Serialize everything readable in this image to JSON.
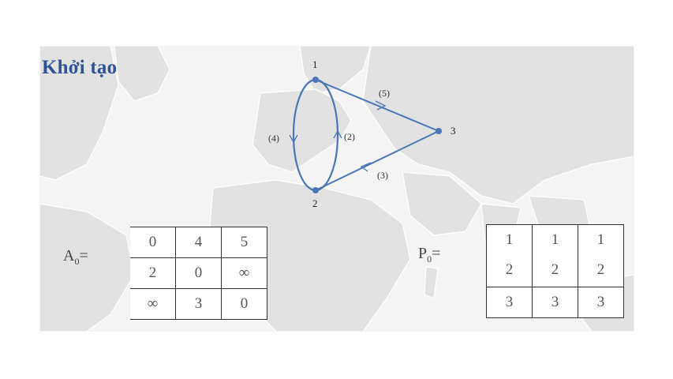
{
  "slide": {
    "title": "Khởi tạo"
  },
  "graph": {
    "nodes": [
      {
        "id": "1",
        "label": "1"
      },
      {
        "id": "2",
        "label": "2"
      },
      {
        "id": "3",
        "label": "3"
      }
    ],
    "edges": [
      {
        "from": "1",
        "to": "3",
        "label": "(5)"
      },
      {
        "from": "3",
        "to": "2",
        "label": "(3)"
      },
      {
        "from": "1",
        "to": "2",
        "label": "(4)"
      },
      {
        "from": "2",
        "to": "1",
        "label": "(2)"
      }
    ],
    "edge_color": "#4a76b8"
  },
  "matrix_a": {
    "label_main": "A",
    "label_sub": "0",
    "label_suffix": "=",
    "rows": [
      [
        "0",
        "4",
        "5"
      ],
      [
        "2",
        "0",
        "∞"
      ],
      [
        "∞",
        "3",
        "0"
      ]
    ]
  },
  "matrix_p": {
    "label_main": "P",
    "label_sub": "0",
    "label_suffix": "=",
    "top_rows": [
      [
        "1",
        "1",
        "1"
      ],
      [
        "2",
        "2",
        "2"
      ]
    ],
    "bottom_row": [
      "3",
      "3",
      "3"
    ]
  }
}
